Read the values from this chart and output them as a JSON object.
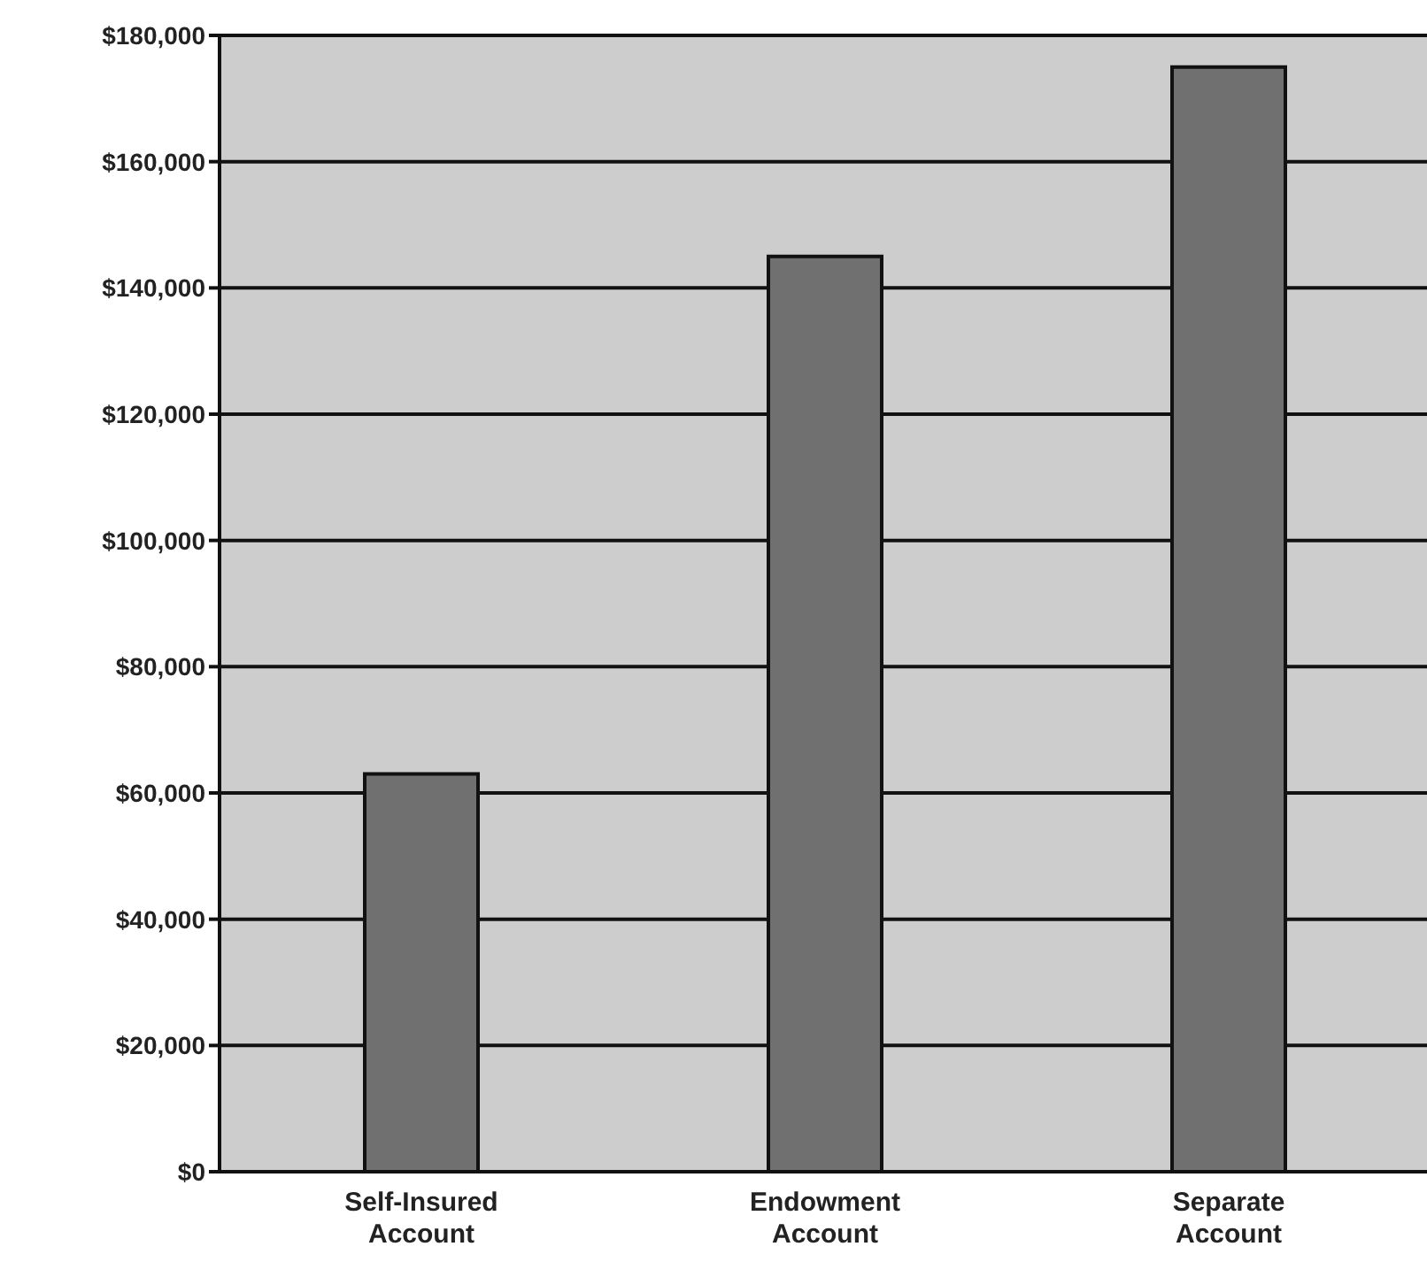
{
  "chart_data": {
    "type": "bar",
    "categories": [
      "Self-Insured Account",
      "Endowment Account",
      "Separate Account"
    ],
    "values": [
      63000,
      145000,
      175000
    ],
    "color": "#707070",
    "ylim": [
      0,
      180000
    ],
    "yticks": [
      {
        "value": 0,
        "label": "$0"
      },
      {
        "value": 20000,
        "label": "$20,000"
      },
      {
        "value": 40000,
        "label": "$40,000"
      },
      {
        "value": 60000,
        "label": "$60,000"
      },
      {
        "value": 80000,
        "label": "$80,000"
      },
      {
        "value": 100000,
        "label": "$100,000"
      },
      {
        "value": 120000,
        "label": "$120,000"
      },
      {
        "value": 140000,
        "label": "$140,000"
      },
      {
        "value": 160000,
        "label": "$160,000"
      },
      {
        "value": 180000,
        "label": "$180,000"
      }
    ],
    "grid": "y"
  }
}
